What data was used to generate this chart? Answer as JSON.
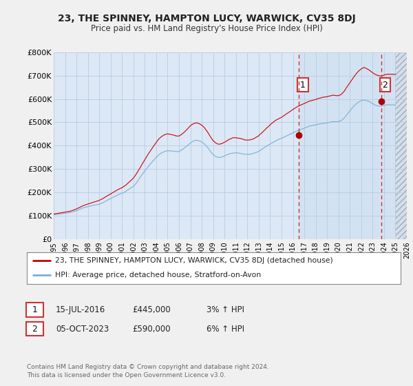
{
  "title": "23, THE SPINNEY, HAMPTON LUCY, WARWICK, CV35 8DJ",
  "subtitle": "Price paid vs. HM Land Registry's House Price Index (HPI)",
  "xlim": [
    1995,
    2026
  ],
  "ylim": [
    0,
    800000
  ],
  "yticks": [
    0,
    100000,
    200000,
    300000,
    400000,
    500000,
    600000,
    700000,
    800000
  ],
  "ytick_labels": [
    "£0",
    "£100K",
    "£200K",
    "£300K",
    "£400K",
    "£500K",
    "£600K",
    "£700K",
    "£800K"
  ],
  "xticks": [
    1995,
    1996,
    1997,
    1998,
    1999,
    2000,
    2001,
    2002,
    2003,
    2004,
    2005,
    2006,
    2007,
    2008,
    2009,
    2010,
    2011,
    2012,
    2013,
    2014,
    2015,
    2016,
    2017,
    2018,
    2019,
    2020,
    2021,
    2022,
    2023,
    2024,
    2025,
    2026
  ],
  "background_color": "#f0f0f0",
  "plot_bg_color": "#dce8f5",
  "hatch_region_start": 2025.0,
  "hatch_region_color": "#c8d8ea",
  "grid_color": "#b8cce4",
  "hpi_color": "#7aafd4",
  "price_color": "#cc0000",
  "marker_color": "#aa0000",
  "vline_color": "#cc3333",
  "event1_x": 2016.54,
  "event2_x": 2023.75,
  "event1_price": 445000,
  "event2_price": 590000,
  "legend_label_price": "23, THE SPINNEY, HAMPTON LUCY, WARWICK, CV35 8DJ (detached house)",
  "legend_label_hpi": "HPI: Average price, detached house, Stratford-on-Avon",
  "note1_label": "1",
  "note1_date": "15-JUL-2016",
  "note1_price": "£445,000",
  "note1_hpi": "3% ↑ HPI",
  "note2_label": "2",
  "note2_date": "05-OCT-2023",
  "note2_price": "£590,000",
  "note2_hpi": "6% ↑ HPI",
  "footer": "Contains HM Land Registry data © Crown copyright and database right 2024.\nThis data is licensed under the Open Government Licence v3.0."
}
